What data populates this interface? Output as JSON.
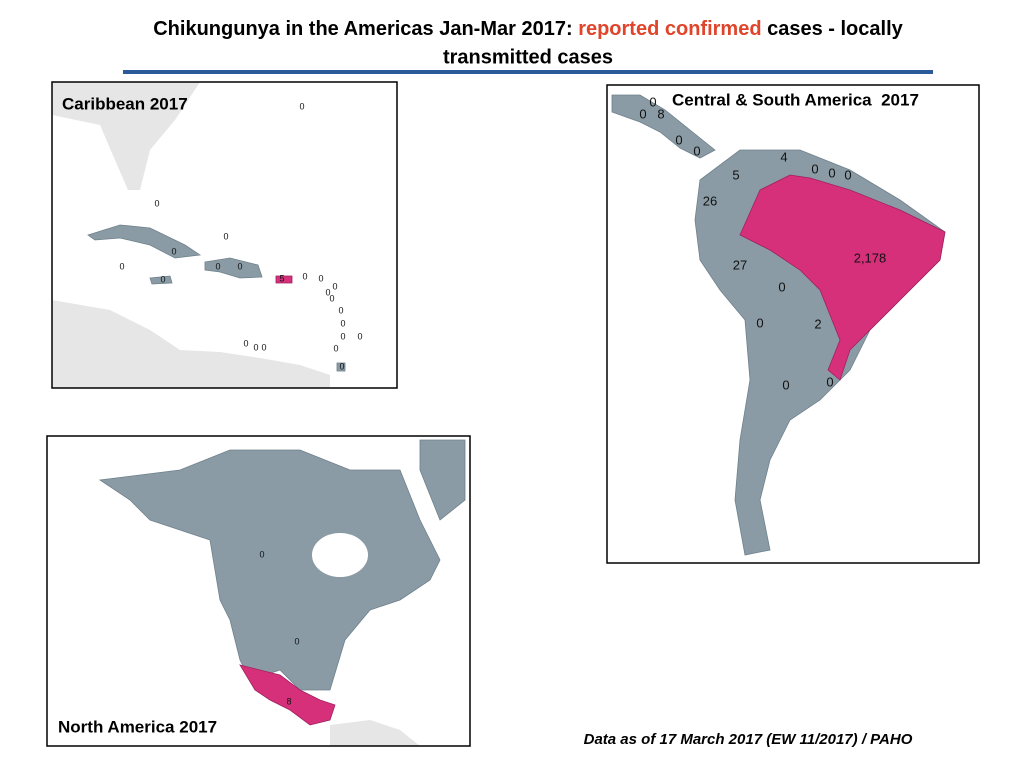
{
  "title": {
    "before": "Chikungunya in the Americas Jan-Mar 2017: ",
    "highlight": "reported confirmed",
    "after": " cases - locally",
    "line2": "transmitted cases"
  },
  "caribbean": {
    "title": "Caribbean 2017",
    "labels": [
      "0",
      "0",
      "0",
      "0",
      "0",
      "0",
      "0",
      "0",
      "5",
      "0",
      "0",
      "0",
      "0",
      "0",
      "0",
      "0",
      "0",
      "0",
      "0",
      "0",
      "0",
      "0",
      "0"
    ]
  },
  "south_america": {
    "title": "Central & South America  2017",
    "labels": [
      "0",
      "0",
      "8",
      "0",
      "0",
      "4",
      "0",
      "0",
      "0",
      "5",
      "26",
      "27",
      "2,178",
      "0",
      "0",
      "2",
      "0",
      "0"
    ]
  },
  "north_america": {
    "title": "North America 2017",
    "labels": [
      "0",
      "0",
      "8"
    ]
  },
  "footnote": "Data as of 17 March 2017 (EW 11/2017) / PAHO"
}
